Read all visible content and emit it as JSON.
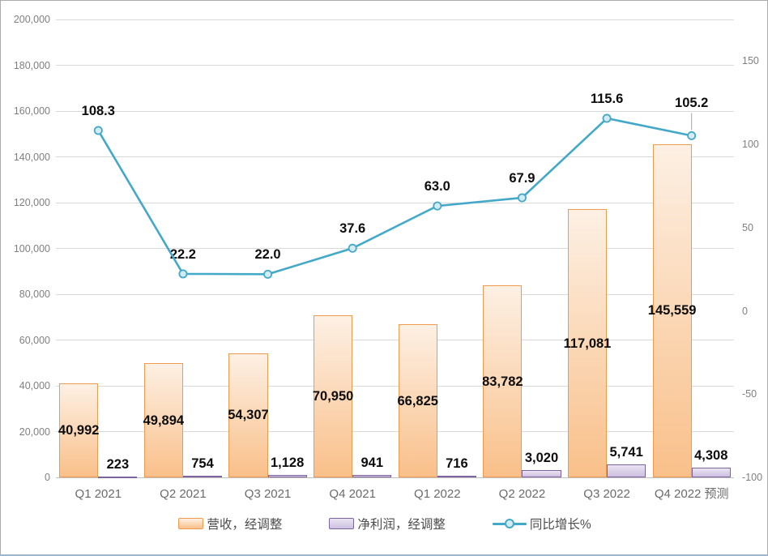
{
  "chart_data": {
    "type": "combo-bar-line",
    "categories": [
      "Q1 2021",
      "Q2 2021",
      "Q3 2021",
      "Q4 2021",
      "Q1 2022",
      "Q2 2022",
      "Q3 2022",
      "Q4 2022 预测"
    ],
    "bar_series": [
      {
        "name": "营收，经调整",
        "values": [
          40992,
          49894,
          54307,
          70950,
          66825,
          83782,
          117081,
          145559
        ],
        "labels": [
          "40,992",
          "49,894",
          "54,307",
          "70,950",
          "66,825",
          "83,782",
          "117,081",
          "145,559"
        ],
        "axis": "left",
        "label_position": "inside-center",
        "colors": {
          "border": "#f09a50",
          "fill_top": "#fdf0e4",
          "fill_bottom": "#f9c08a"
        }
      },
      {
        "name": "净利润，经调整",
        "values": [
          223,
          754,
          1128,
          941,
          716,
          3020,
          5741,
          4308
        ],
        "labels": [
          "223",
          "754",
          "1,128",
          "941",
          "716",
          "3,020",
          "5,741",
          "4,308"
        ],
        "axis": "left",
        "label_position": "above",
        "colors": {
          "border": "#7e63a1",
          "fill_top": "#eae4f2",
          "fill_bottom": "#cdc0e0"
        }
      }
    ],
    "line_series": [
      {
        "name": "同比增长%",
        "values": [
          108.3,
          22.2,
          22.0,
          37.6,
          63.0,
          67.9,
          115.6,
          105.2
        ],
        "labels": [
          "108.3",
          "22.2",
          "22.0",
          "37.6",
          "63.0",
          "67.9",
          "115.6",
          "105.2"
        ],
        "axis": "right",
        "last_label_leader": true,
        "colors": {
          "line": "#44a9c8",
          "marker_fill": "#d4ebf4",
          "leader": "#a6a6a6"
        }
      }
    ],
    "axes": {
      "left": {
        "min": 0,
        "max": 200000,
        "step": 20000,
        "tick_labels": [
          "0",
          "20,000",
          "40,000",
          "60,000",
          "80,000",
          "100,000",
          "120,000",
          "140,000",
          "160,000",
          "180,000",
          "200,000"
        ]
      },
      "right": {
        "min": -100,
        "max": 175,
        "step": 50,
        "tick_labels": [
          "-100",
          "-50",
          "0",
          "50",
          "100",
          "150"
        ]
      }
    },
    "grid": {
      "visible": true,
      "color": "#d9d9d9",
      "baseline_color": "#c0c0c0"
    },
    "legend_position": "bottom",
    "title": "",
    "xlabel": "",
    "ylabel": ""
  }
}
